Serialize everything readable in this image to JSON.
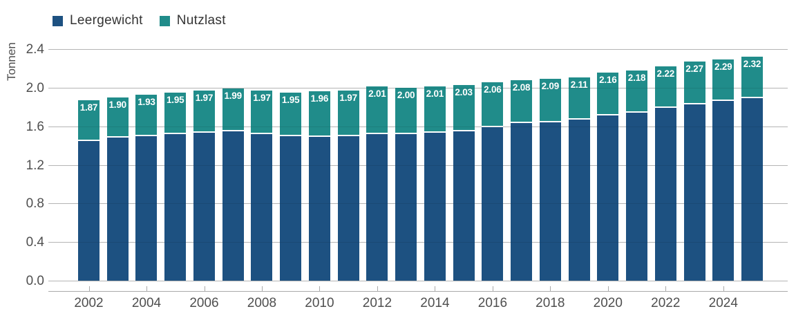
{
  "legend": {
    "items": [
      {
        "label": "Leergewicht",
        "color": "#1D5181"
      },
      {
        "label": "Nutzlast",
        "color": "#208C8A"
      }
    ]
  },
  "chart_data": {
    "type": "bar",
    "stacked": true,
    "title": "",
    "xlabel": "",
    "ylabel": "Tonnen",
    "ylim": [
      0,
      2.4
    ],
    "y_ticks": [
      0.0,
      0.4,
      0.8,
      1.2,
      1.6,
      2.0,
      2.4
    ],
    "grid": true,
    "legend_position": "top-left",
    "categories": [
      2002,
      2003,
      2004,
      2005,
      2006,
      2007,
      2008,
      2009,
      2010,
      2011,
      2012,
      2013,
      2014,
      2015,
      2016,
      2017,
      2018,
      2019,
      2020,
      2021,
      2022,
      2023,
      2024,
      2025
    ],
    "x_tick_labels": [
      "2002",
      "2004",
      "2006",
      "2008",
      "2010",
      "2012",
      "2014",
      "2016",
      "2018",
      "2020",
      "2022",
      "2024"
    ],
    "series": [
      {
        "name": "Leergewicht",
        "color": "#1D5181",
        "values": [
          1.45,
          1.48,
          1.5,
          1.52,
          1.53,
          1.55,
          1.52,
          1.5,
          1.49,
          1.5,
          1.52,
          1.52,
          1.53,
          1.55,
          1.59,
          1.63,
          1.64,
          1.67,
          1.71,
          1.74,
          1.79,
          1.83,
          1.86,
          1.89
        ]
      },
      {
        "name": "Nutzlast",
        "color": "#208C8A",
        "values": [
          0.42,
          0.42,
          0.43,
          0.43,
          0.44,
          0.44,
          0.45,
          0.45,
          0.47,
          0.47,
          0.49,
          0.48,
          0.48,
          0.48,
          0.47,
          0.45,
          0.45,
          0.44,
          0.45,
          0.44,
          0.43,
          0.44,
          0.43,
          0.43
        ]
      }
    ],
    "totals": [
      1.87,
      1.9,
      1.93,
      1.95,
      1.97,
      1.99,
      1.97,
      1.95,
      1.96,
      1.97,
      2.01,
      2.0,
      2.01,
      2.03,
      2.06,
      2.08,
      2.09,
      2.11,
      2.16,
      2.18,
      2.22,
      2.27,
      2.29,
      2.32
    ],
    "total_labels": [
      "1.87",
      "1.90",
      "1.93",
      "1.95",
      "1.97",
      "1.99",
      "1.97",
      "1.95",
      "1.96",
      "1.97",
      "2.01",
      "2.00",
      "2.01",
      "2.03",
      "2.06",
      "2.08",
      "2.09",
      "2.11",
      "2.16",
      "2.18",
      "2.22",
      "2.27",
      "2.29",
      "2.32"
    ]
  },
  "colors": {
    "background": "#ffffff",
    "gridline": "#c6c6c6",
    "axis_line": "#a9a9a9",
    "tick_label_text": "#4f4f4f",
    "legend_text": "#333333",
    "bar_value_label": "#ffffff"
  }
}
